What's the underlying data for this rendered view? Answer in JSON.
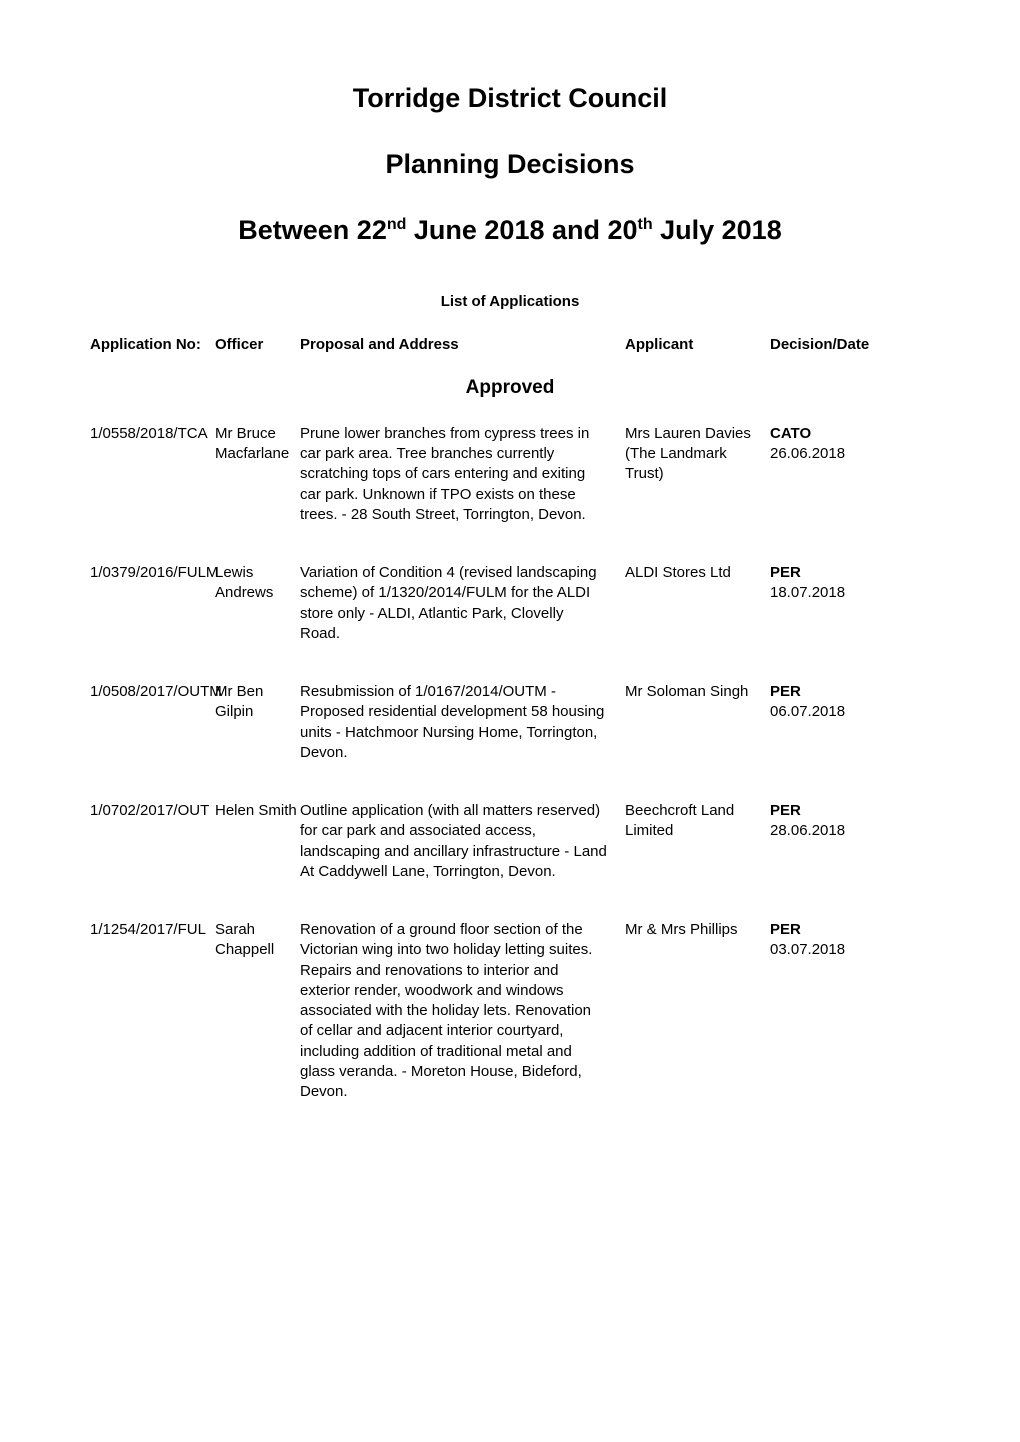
{
  "header": {
    "main_title": "Torridge District Council",
    "sub_title": "Planning Decisions",
    "date_range_html": "Between 22<sup>nd</sup> June 2018 and 20<sup>th</sup> July 2018",
    "list_heading": "List of Applications"
  },
  "columns": {
    "appno": "Application No:",
    "officer": "Officer",
    "proposal": "Proposal and Address",
    "applicant": "Applicant",
    "decision": "Decision/Date"
  },
  "section": "Approved",
  "applications": [
    {
      "appno": "1/0558/2018/TCA",
      "officer": "Mr Bruce Macfarlane",
      "proposal": "Prune lower branches from cypress trees in car park area. Tree branches currently scratching tops of cars entering and exiting car park. Unknown if TPO exists on these trees. - 28 South Street, Torrington, Devon.",
      "applicant": "Mrs Lauren Davies (The Landmark Trust)",
      "decision_code": "CATO",
      "decision_date": "26.06.2018"
    },
    {
      "appno": "1/0379/2016/FULM",
      "officer": "Lewis Andrews",
      "proposal": "Variation of Condition 4 (revised landscaping scheme) of 1/1320/2014/FULM for the ALDI store only - ALDI, Atlantic Park, Clovelly Road.",
      "applicant": "ALDI Stores Ltd",
      "decision_code": "PER",
      "decision_date": "18.07.2018"
    },
    {
      "appno": "1/0508/2017/OUTM",
      "officer": "Mr Ben Gilpin",
      "proposal": "Resubmission of 1/0167/2014/OUTM - Proposed residential development 58 housing units - Hatchmoor Nursing Home, Torrington, Devon.",
      "applicant": "Mr Soloman Singh",
      "decision_code": "PER",
      "decision_date": "06.07.2018"
    },
    {
      "appno": "1/0702/2017/OUT",
      "officer": "Helen Smith",
      "proposal": "Outline application (with all matters reserved) for car park and associated access, landscaping and ancillary infrastructure - Land At Caddywell Lane, Torrington, Devon.",
      "applicant": "Beechcroft Land Limited",
      "decision_code": "PER",
      "decision_date": "28.06.2018"
    },
    {
      "appno": "1/1254/2017/FUL",
      "officer": "Sarah Chappell",
      "proposal": "Renovation of a ground floor section of the Victorian wing into two holiday letting suites. Repairs and renovations to interior and exterior render,  woodwork and windows associated with the holiday lets. Renovation of cellar and adjacent interior courtyard, including addition of traditional metal and glass veranda. - Moreton House, Bideford, Devon.",
      "applicant": "Mr & Mrs Phillips",
      "decision_code": "PER",
      "decision_date": "03.07.2018"
    }
  ]
}
